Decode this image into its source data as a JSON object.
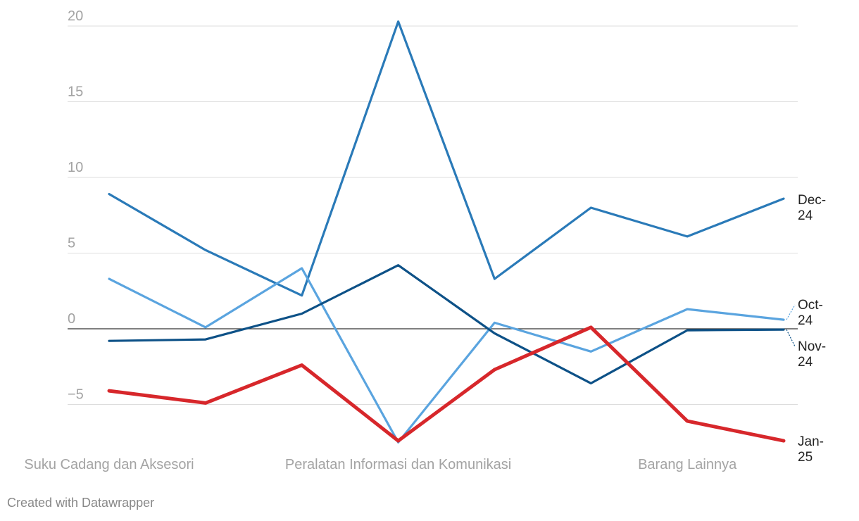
{
  "chart_data": {
    "type": "line",
    "categories": [
      "Suku Cadang dan Aksesori",
      "",
      "",
      "Peralatan Informasi dan Komunikasi",
      "",
      "",
      "Barang Lainnya",
      ""
    ],
    "x_tick_labels": [
      "Suku Cadang dan Aksesori",
      "Peralatan Informasi dan Komunikasi",
      "Barang Lainnya"
    ],
    "ylim": [
      -7.5,
      20.5
    ],
    "yticks": [
      20,
      15,
      10,
      5,
      0,
      -5
    ],
    "ytick_labels": [
      "20",
      "15",
      "10",
      "5",
      "0",
      "−5"
    ],
    "grid": true,
    "series": [
      {
        "name": "Dec-24",
        "color": "#2a7ab8",
        "values": [
          8.9,
          5.2,
          2.2,
          20.3,
          3.3,
          8.0,
          6.1,
          8.6
        ]
      },
      {
        "name": "Oct-24",
        "color": "#5aa4df",
        "values": [
          3.3,
          0.1,
          4.0,
          -7.5,
          0.4,
          -1.5,
          1.3,
          0.6
        ]
      },
      {
        "name": "Nov-24",
        "color": "#0d5187",
        "values": [
          -0.8,
          -0.7,
          1.0,
          4.2,
          -0.3,
          -3.6,
          -0.1,
          -0.05
        ]
      },
      {
        "name": "Jan-25",
        "color": "#d7272b",
        "values": [
          -4.1,
          -4.9,
          -2.4,
          -7.4,
          -2.7,
          0.1,
          -6.1,
          -7.4
        ]
      }
    ],
    "credit": "Created with Datawrapper"
  },
  "labels": {
    "Dec-24": [
      "Dec-",
      "24"
    ],
    "Oct-24": [
      "Oct-",
      "24"
    ],
    "Nov-24": [
      "Nov-",
      "24"
    ],
    "Jan-25": [
      "Jan-",
      "25"
    ]
  }
}
